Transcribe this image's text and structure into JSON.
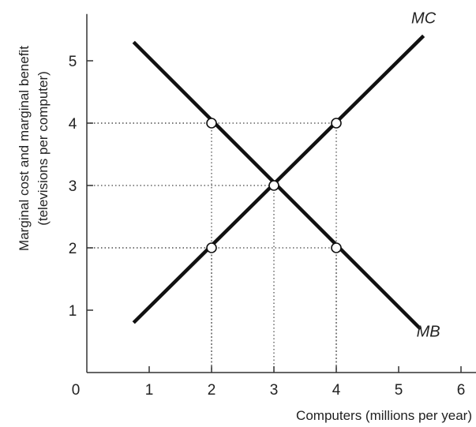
{
  "chart_data": {
    "type": "line",
    "x": [
      0,
      1,
      2,
      3,
      4,
      5,
      6
    ],
    "xlim": [
      0,
      6
    ],
    "ylim": [
      0,
      5.75
    ],
    "x_ticks": [
      0,
      1,
      2,
      3,
      4,
      5,
      6
    ],
    "y_ticks": [
      1,
      2,
      3,
      4,
      5
    ],
    "xlabel": "Computers (millions per year)",
    "ylabel_line1": "Marginal cost and marginal benefit",
    "ylabel_line2": "(televisions per computer)",
    "grid": false,
    "series": [
      {
        "name": "MC",
        "points": [
          [
            0.75,
            0.8
          ],
          [
            5.4,
            5.4
          ]
        ],
        "color": "#111111"
      },
      {
        "name": "MB",
        "points": [
          [
            0.75,
            5.3
          ],
          [
            5.35,
            0.7
          ]
        ],
        "color": "#111111"
      }
    ],
    "highlight_points": [
      [
        2,
        4
      ],
      [
        4,
        4
      ],
      [
        3,
        3
      ],
      [
        2,
        2
      ],
      [
        4,
        2
      ]
    ],
    "guide_lines": [
      {
        "x": 2,
        "y": 4
      },
      {
        "x": 4,
        "y": 4
      },
      {
        "x": 3,
        "y": 3
      },
      {
        "x": 2,
        "y": 2
      },
      {
        "x": 4,
        "y": 2
      }
    ]
  }
}
